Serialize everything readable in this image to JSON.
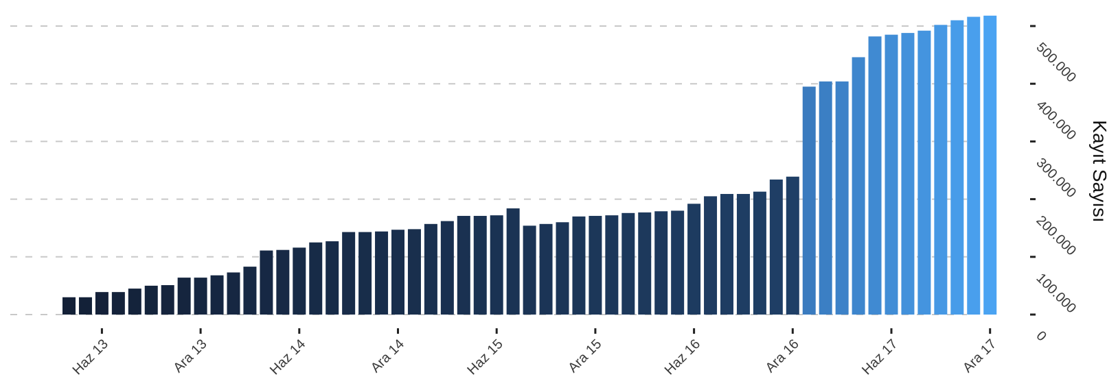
{
  "chart_data": {
    "type": "bar",
    "title": "",
    "xlabel": "",
    "ylabel": "Kayıt Sayısı",
    "ylim": [
      0,
      520000
    ],
    "grid": true,
    "y_axis_position": "right",
    "y_ticks": [
      0,
      100000,
      200000,
      300000,
      400000,
      500000
    ],
    "y_tick_labels": [
      "0",
      "100.000",
      "200.000",
      "300.000",
      "400.000",
      "500.000"
    ],
    "x_tick_labels": [
      "Haz 13",
      "Ara 13",
      "Haz 14",
      "Ara 14",
      "Haz 15",
      "Ara 15",
      "Haz 16",
      "Ara 16",
      "Haz 17",
      "Ara 17"
    ],
    "x_tick_bar_index": [
      2,
      8,
      14,
      20,
      26,
      32,
      38,
      44,
      50,
      56
    ],
    "color_scale": {
      "low": "#132037",
      "mid": "#1f3f66",
      "high_start": "#3a7bbf",
      "high_end": "#4aa3f2"
    },
    "values": [
      30000,
      30000,
      39000,
      39000,
      45000,
      50000,
      51000,
      64000,
      64000,
      68000,
      73000,
      83000,
      111000,
      112000,
      116000,
      125000,
      127000,
      143000,
      143000,
      144000,
      147000,
      148000,
      157000,
      162000,
      171000,
      171000,
      172000,
      184000,
      154000,
      157000,
      160000,
      170000,
      171000,
      172000,
      176000,
      177000,
      179000,
      180000,
      192000,
      205000,
      209000,
      209000,
      213000,
      234000,
      239000,
      395000,
      404000,
      404000,
      446000,
      482000,
      485000,
      488000,
      492000,
      502000,
      510000,
      516000,
      518000
    ]
  }
}
